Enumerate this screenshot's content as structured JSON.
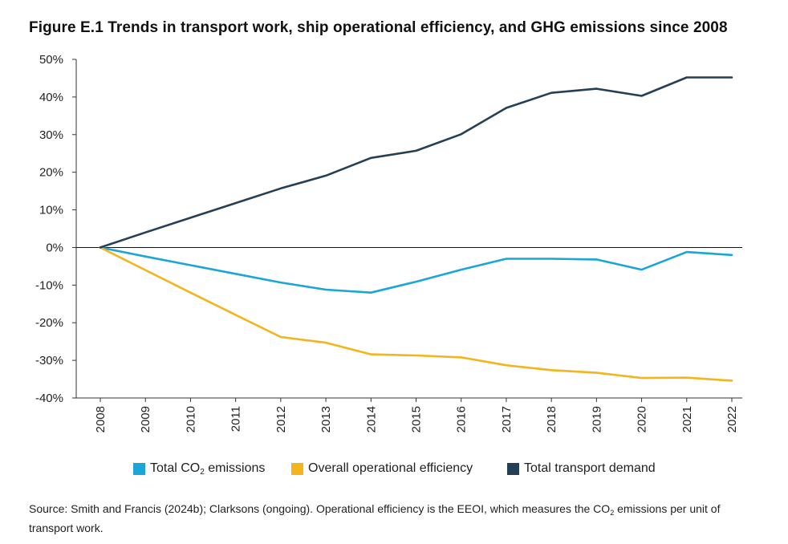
{
  "title": "Figure E.1 Trends in transport work, ship operational efficiency, and GHG emissions since 2008",
  "legend": {
    "co2_prefix": "Total CO",
    "co2_sub": "2",
    "co2_suffix": " emissions",
    "efficiency": "Overall operational efficiency",
    "demand": "Total transport demand"
  },
  "source": {
    "part1": "Source: Smith and Francis (2024b); Clarksons (ongoing). Operational efficiency is the EEOI, which measures the CO",
    "sub": "2",
    "part2": " emissions per unit of transport work."
  },
  "chart_data": {
    "type": "line",
    "title": "Figure E.1 Trends in transport work, ship operational efficiency, and GHG emissions since 2008",
    "xlabel": "",
    "ylabel": "",
    "ylim": [
      -40,
      50
    ],
    "y_ticks": [
      50,
      40,
      30,
      20,
      10,
      0,
      -10,
      -20,
      -30,
      -40
    ],
    "y_tick_labels": [
      "50%",
      "40%",
      "30%",
      "20%",
      "10%",
      "0%",
      "-10%",
      "-20%",
      "-30%",
      "-40%"
    ],
    "categories": [
      "2008",
      "2009",
      "2010",
      "2011",
      "2012",
      "2013",
      "2014",
      "2015",
      "2016",
      "2017",
      "2018",
      "2019",
      "2020",
      "2021",
      "2022"
    ],
    "legend_position": "bottom",
    "grid": false,
    "series": [
      {
        "name": "Total CO2 emissions",
        "color": "#1aa6d8",
        "values": [
          0,
          -2.4,
          -4.7,
          -7.0,
          -9.3,
          -11.2,
          -12.0,
          -9.1,
          -5.9,
          -3.0,
          -3.0,
          -3.2,
          -5.9,
          -1.2,
          -2.0
        ]
      },
      {
        "name": "Overall operational efficiency",
        "color": "#f3b41c",
        "values": [
          0,
          -6.0,
          -12.0,
          -17.9,
          -23.8,
          -25.3,
          -28.4,
          -28.7,
          -29.2,
          -31.3,
          -32.6,
          -33.3,
          -34.7,
          -34.6,
          -35.4
        ]
      },
      {
        "name": "Total transport demand",
        "color": "#253f56",
        "values": [
          0,
          4.0,
          7.9,
          11.8,
          15.7,
          19.1,
          23.8,
          25.7,
          30.1,
          37.1,
          41.1,
          42.2,
          40.3,
          45.2,
          45.2
        ]
      }
    ]
  }
}
